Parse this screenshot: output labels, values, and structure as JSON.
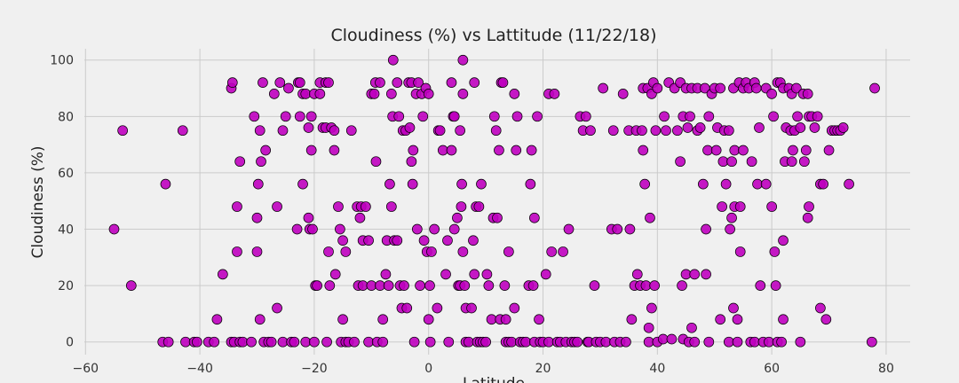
{
  "chart_data": {
    "type": "scatter",
    "title": "Cloudiness (%) vs Lattitude (11/22/18)",
    "x_label": "Latitude",
    "y_label": "Cloudiness (%)",
    "color": "#bf00bf",
    "edgecolor": "#000000",
    "grid": true,
    "xlim": [
      -60.2,
      84.2
    ],
    "ylim": [
      -4.5,
      104
    ],
    "xticks": [
      {
        "value": -60,
        "label": "−60"
      },
      {
        "value": -40,
        "label": "−40"
      },
      {
        "value": -20,
        "label": "−20"
      },
      0,
      20,
      40,
      60,
      80
    ],
    "yticks": [
      0,
      20,
      40,
      60,
      80,
      100
    ],
    "x": [
      -55,
      -53.5,
      -52,
      -46.5,
      -46,
      -45.5,
      -43,
      -42.5,
      -41,
      -40.5,
      -38.5,
      -37.5,
      -37,
      -36,
      -34.5,
      -34.3,
      -34.5,
      -34,
      -33.5,
      -33.5,
      -33,
      -33,
      -32.5,
      -31,
      -30.5,
      -30,
      -30,
      -29.8,
      -29.5,
      -29.5,
      -29.3,
      -29,
      -28.8,
      -28.5,
      -28,
      -27.5,
      -27,
      -26.5,
      -26.5,
      -26,
      -25.5,
      -25.5,
      -25,
      -24.5,
      -24,
      -23.5,
      -23,
      -22.8,
      -22.5,
      -22.5,
      -22,
      -22,
      -21.5,
      -21.5,
      -21,
      -21,
      -20.8,
      -20.5,
      -20.5,
      -20.3,
      -20,
      -20,
      -19.8,
      -19.5,
      -19,
      -19,
      -18.5,
      -18,
      -18,
      -17.8,
      -17.5,
      -17.5,
      -17.3,
      -17,
      -16.5,
      -16.5,
      -16.3,
      -15.8,
      -15.5,
      -15.3,
      -15,
      -15,
      -14.5,
      -14.5,
      -14,
      -13.5,
      -13,
      -12.5,
      -12.3,
      -12,
      -11.8,
      -11.5,
      -11.5,
      -11,
      -10.5,
      -10.5,
      -10,
      -10,
      -9.5,
      -9.3,
      -9.2,
      -9,
      -8.5,
      -8.5,
      -8,
      -8,
      -7.5,
      -7.3,
      -7,
      -6.8,
      -6.5,
      -6.5,
      -6.3,
      -6.2,
      -6,
      -5.5,
      -5.5,
      -5.2,
      -5,
      -4.7,
      -4.5,
      -4.3,
      -4,
      -3.8,
      -3.5,
      -3.3,
      -3,
      -3,
      -2.8,
      -2.7,
      -2.5,
      -2.2,
      -2,
      -1.8,
      -1.5,
      -1.2,
      -1,
      -0.8,
      -0.5,
      -0.3,
      0,
      0,
      0.2,
      0.5,
      0.3,
      1,
      1.5,
      1.7,
      2,
      2.5,
      3,
      3.3,
      3.5,
      4,
      4,
      4.3,
      4.5,
      4.5,
      5,
      5.2,
      5.5,
      5.5,
      5.7,
      5.8,
      6,
      6,
      6,
      6.3,
      6.5,
      6.5,
      7,
      7.5,
      7.8,
      8,
      8,
      8.3,
      8.5,
      8.8,
      9,
      9.2,
      9.5,
      10,
      10.2,
      10.5,
      11,
      11.3,
      11.5,
      11.8,
      12,
      12.3,
      12.5,
      12.7,
      13,
      13.3,
      13.5,
      13.5,
      14,
      14,
      14.5,
      15,
      15,
      15.3,
      15.5,
      16,
      16.5,
      17,
      17.5,
      17.8,
      18,
      18.3,
      18.5,
      18.5,
      19,
      19.3,
      19.5,
      20,
      20.5,
      21,
      21,
      21.5,
      22,
      22.5,
      23,
      23.5,
      24,
      24.5,
      25,
      25.5,
      26,
      26.5,
      27,
      27.5,
      27.8,
      28,
      28.3,
      29,
      29.3,
      30,
      30.5,
      31,
      32,
      32.3,
      32.5,
      33,
      33.5,
      34,
      34.5,
      35,
      35.2,
      35.5,
      36,
      36.3,
      36.5,
      37,
      37.3,
      37.5,
      37.5,
      37.8,
      38,
      38.3,
      38.5,
      38.5,
      38.7,
      39,
      39,
      39.3,
      39.5,
      39.7,
      40,
      40,
      41,
      41.2,
      41.5,
      42,
      42.5,
      43,
      43.5,
      44,
      44,
      44.3,
      44.5,
      44.5,
      45,
      45,
      45.3,
      45.5,
      45.7,
      46,
      46,
      46.5,
      46.5,
      47,
      47,
      47.5,
      48,
      48.3,
      48.5,
      48.5,
      48.8,
      49,
      49,
      49.5,
      50,
      50.3,
      50.5,
      51,
      51,
      51.3,
      51.5,
      51.7,
      52,
      52.5,
      52.5,
      52.7,
      53,
      53,
      53.3,
      53.3,
      53.5,
      53.5,
      54,
      54,
      54.3,
      54.5,
      54.5,
      55,
      55,
      55.5,
      56,
      56.3,
      56.5,
      57,
      57,
      57.3,
      57.5,
      57.8,
      58,
      58.5,
      59,
      59,
      59.5,
      60,
      60,
      60.3,
      60.5,
      60.7,
      61,
      61,
      61.5,
      61.7,
      62,
      62,
      62,
      62.3,
      62.5,
      63,
      63.3,
      63.5,
      63.5,
      63.7,
      64,
      64.3,
      64.5,
      65,
      65,
      65.5,
      65.7,
      66,
      66.3,
      66.5,
      66.5,
      66.3,
      67,
      67.5,
      68,
      68.5,
      68.5,
      69,
      69.5,
      70,
      70.5,
      71,
      71.5,
      72,
      72.5,
      73.5,
      77.5,
      78
    ],
    "values": [
      40,
      75,
      20,
      0,
      56,
      0,
      75,
      0,
      0,
      0,
      0,
      0,
      8,
      24,
      90,
      92,
      0,
      0,
      48,
      32,
      64,
      0,
      0,
      0,
      80,
      32,
      44,
      56,
      75,
      8,
      64,
      92,
      0,
      68,
      0,
      0,
      88,
      12,
      48,
      92,
      75,
      0,
      80,
      90,
      0,
      0,
      40,
      92,
      92,
      80,
      56,
      88,
      0,
      88,
      76,
      44,
      40,
      68,
      80,
      40,
      88,
      0,
      20,
      20,
      92,
      88,
      76,
      92,
      76,
      0,
      92,
      32,
      20,
      76,
      75,
      68,
      24,
      48,
      40,
      0,
      36,
      8,
      32,
      0,
      0,
      75,
      0,
      48,
      20,
      44,
      48,
      36,
      20,
      48,
      36,
      0,
      88,
      20,
      88,
      92,
      64,
      0,
      92,
      20,
      8,
      0,
      24,
      36,
      20,
      56,
      88,
      48,
      80,
      100,
      36,
      92,
      36,
      80,
      20,
      12,
      75,
      20,
      75,
      12,
      92,
      76,
      92,
      64,
      56,
      68,
      0,
      88,
      40,
      92,
      20,
      88,
      80,
      36,
      90,
      32,
      8,
      88,
      20,
      32,
      0,
      40,
      12,
      75,
      75,
      68,
      24,
      36,
      0,
      92,
      68,
      80,
      40,
      80,
      44,
      20,
      75,
      20,
      48,
      56,
      88,
      100,
      32,
      20,
      12,
      0,
      0,
      12,
      36,
      24,
      92,
      48,
      0,
      48,
      0,
      56,
      0,
      0,
      24,
      20,
      8,
      44,
      80,
      75,
      44,
      68,
      8,
      92,
      92,
      20,
      8,
      0,
      32,
      0,
      0,
      88,
      12,
      68,
      80,
      0,
      0,
      0,
      20,
      56,
      68,
      20,
      44,
      0,
      80,
      8,
      0,
      0,
      24,
      88,
      0,
      32,
      88,
      0,
      0,
      32,
      0,
      40,
      0,
      0,
      0,
      80,
      75,
      80,
      0,
      0,
      75,
      20,
      0,
      0,
      90,
      0,
      40,
      75,
      0,
      40,
      0,
      88,
      0,
      75,
      40,
      8,
      20,
      75,
      24,
      20,
      75,
      90,
      68,
      56,
      20,
      90,
      0,
      5,
      44,
      12,
      88,
      92,
      20,
      75,
      90,
      0,
      1,
      80,
      75,
      92,
      1,
      90,
      75,
      92,
      64,
      20,
      80,
      1,
      90,
      24,
      76,
      0,
      80,
      90,
      5,
      24,
      0,
      90,
      75,
      76,
      56,
      90,
      40,
      24,
      68,
      80,
      0,
      88,
      90,
      68,
      76,
      90,
      8,
      48,
      64,
      75,
      56,
      75,
      0,
      40,
      64,
      44,
      90,
      12,
      48,
      68,
      0,
      8,
      92,
      48,
      32,
      90,
      68,
      92,
      90,
      0,
      64,
      92,
      0,
      90,
      56,
      76,
      20,
      0,
      90,
      56,
      0,
      88,
      48,
      80,
      32,
      20,
      92,
      0,
      92,
      0,
      90,
      36,
      8,
      64,
      76,
      90,
      75,
      88,
      64,
      68,
      75,
      90,
      80,
      0,
      76,
      88,
      64,
      68,
      88,
      80,
      48,
      44,
      80,
      76,
      80,
      56,
      12,
      56,
      8,
      68,
      75,
      75,
      75,
      75,
      76,
      56,
      0,
      90
    ]
  }
}
